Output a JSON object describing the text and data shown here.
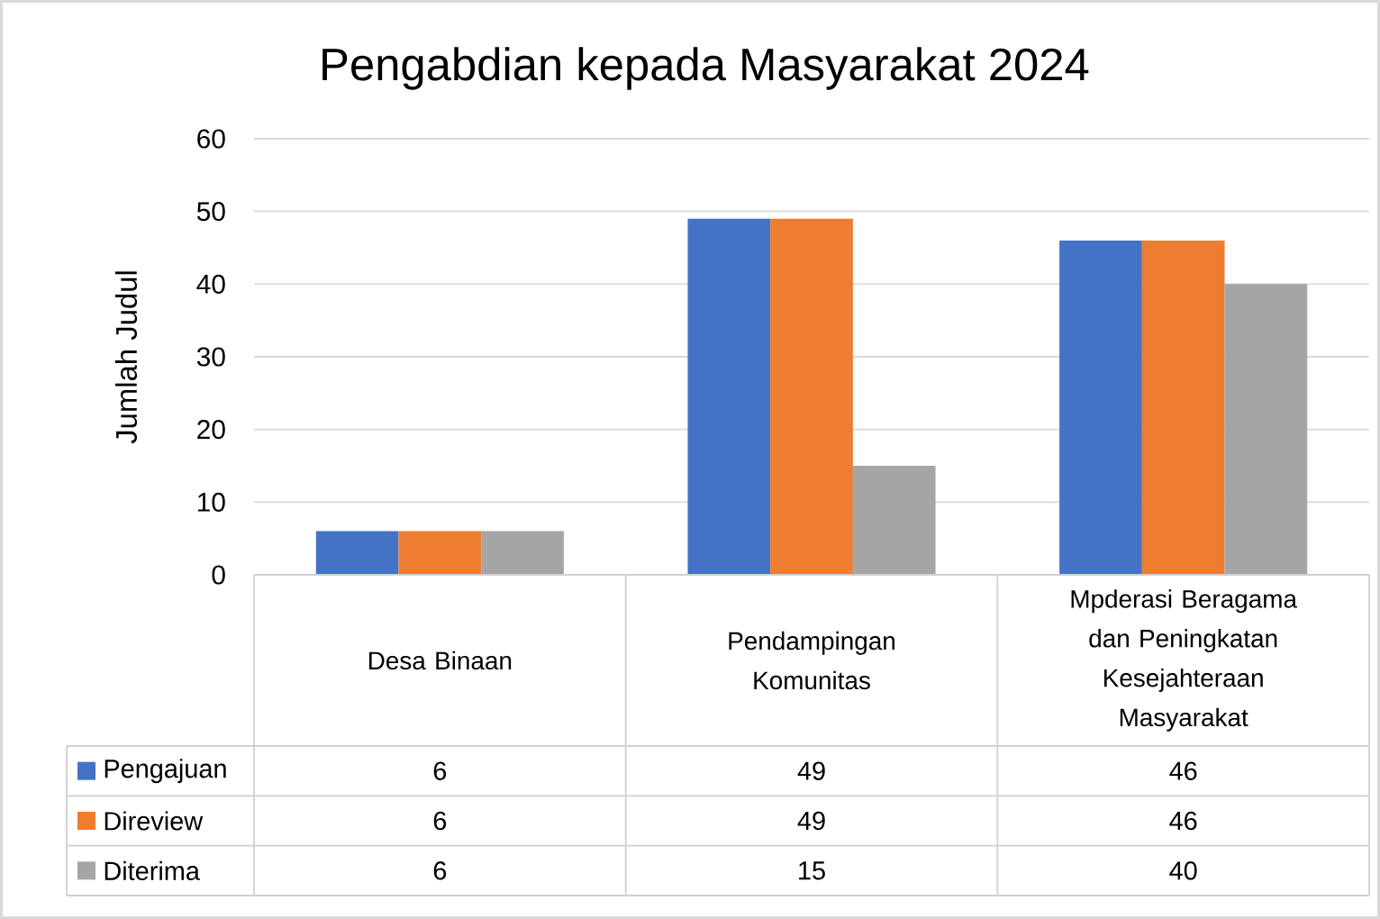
{
  "chart_data": {
    "type": "bar",
    "title": "Pengabdian kepada Masyarakat 2024",
    "ylabel": "Jumlah Judul",
    "categories": [
      "Desa Binaan",
      "Pendampingan Komunitas",
      "Mpderasi Beragama dan Peningkatan Kesejahteraan Masyarakat"
    ],
    "series": [
      {
        "name": "Pengajuan",
        "color": "#4472c4",
        "values": [
          6,
          49,
          46
        ]
      },
      {
        "name": "Direview",
        "color": "#ed7d31",
        "values": [
          6,
          49,
          46
        ]
      },
      {
        "name": "Diterima",
        "color": "#a5a5a5",
        "values": [
          6,
          15,
          40
        ]
      }
    ],
    "ylim": [
      0,
      60
    ],
    "yticks": [
      0,
      10,
      20,
      30,
      40,
      50,
      60
    ],
    "grid": "y",
    "legend": "bottom",
    "data_labels": true
  }
}
